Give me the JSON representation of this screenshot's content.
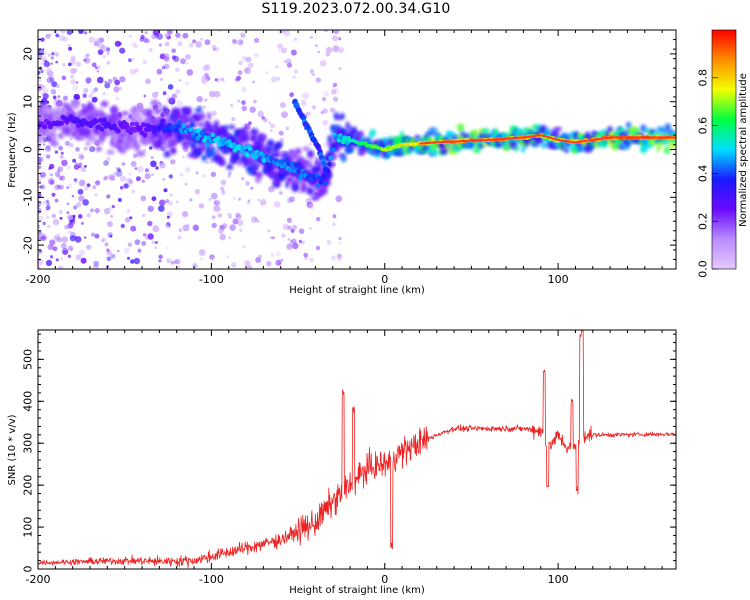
{
  "title": "S119.2023.072.00.34.G10",
  "colors": {
    "snr_line": "#ee2222",
    "ridge": "#ff2a2a",
    "colormap": [
      "#e6c8ff",
      "#b98cff",
      "#6a0aff",
      "#1a1aff",
      "#00e0ff",
      "#00ff40",
      "#f2ff00",
      "#ff8c00",
      "#ff0000"
    ]
  },
  "chart_data": [
    {
      "type": "heatmap",
      "title": "",
      "xlabel": "Height of straight line (km)",
      "ylabel": "Frequency (Hz)",
      "xlim": [
        -200,
        168
      ],
      "ylim": [
        -25,
        25
      ],
      "xticks": [
        -200,
        -100,
        0,
        100
      ],
      "yticks": [
        -20,
        -10,
        0,
        10,
        20
      ],
      "grid": false,
      "colorbar": {
        "label": "Normalized spectral amplitude",
        "range": [
          0,
          1
        ],
        "ticks": [
          0.0,
          0.2,
          0.4,
          0.6,
          0.8
        ],
        "tick_labels": [
          "0.0",
          "0.2",
          "0.4",
          "0.6",
          "0.8"
        ]
      },
      "ridge": {
        "x": [
          -200,
          -180,
          -160,
          -140,
          -120,
          -100,
          -80,
          -60,
          -45,
          -35,
          -28,
          -20,
          -10,
          0,
          10,
          30,
          60,
          80,
          90,
          100,
          110,
          130,
          168
        ],
        "y": [
          5,
          6,
          5,
          4,
          5,
          2,
          0,
          -3,
          -5,
          -7,
          3,
          2,
          1,
          0,
          1,
          1.5,
          2,
          2.5,
          3,
          2,
          1.5,
          2.5,
          2.5
        ],
        "amplitude": [
          0.25,
          0.3,
          0.3,
          0.25,
          0.45,
          0.5,
          0.5,
          0.45,
          0.45,
          0.4,
          0.5,
          0.55,
          0.65,
          0.7,
          0.8,
          0.85,
          0.9,
          0.85,
          0.75,
          0.8,
          0.85,
          0.9,
          0.9
        ]
      },
      "branch": {
        "x": [
          -52,
          -45,
          -38,
          -33
        ],
        "y": [
          10,
          5,
          0,
          -5
        ]
      }
    },
    {
      "type": "line",
      "title": "",
      "xlabel": "Height of straight line (km)",
      "ylabel": "SNR (10 * v/v)",
      "xlim": [
        -200,
        168
      ],
      "ylim": [
        0,
        570
      ],
      "xticks": [
        -200,
        -100,
        0,
        100
      ],
      "yticks": [
        0,
        100,
        200,
        300,
        400,
        500
      ],
      "grid": false,
      "series": [
        {
          "x": [
            -200,
            -170,
            -150,
            -130,
            -110,
            -100,
            -80,
            -60,
            -40,
            -30,
            -20,
            -10,
            0,
            10,
            20,
            30,
            40,
            60,
            80,
            90,
            95,
            100,
            105,
            110,
            115,
            130,
            168
          ],
          "values": [
            15,
            18,
            20,
            18,
            20,
            30,
            50,
            70,
            110,
            160,
            200,
            240,
            250,
            280,
            300,
            320,
            335,
            335,
            335,
            330,
            290,
            320,
            290,
            290,
            320,
            320,
            322
          ],
          "spikes": [
            {
              "x": -24,
              "value": 420
            },
            {
              "x": -18,
              "value": 380
            },
            {
              "x": 4,
              "value": 55
            },
            {
              "x": 92,
              "value": 470
            },
            {
              "x": 94,
              "value": 200
            },
            {
              "x": 108,
              "value": 400
            },
            {
              "x": 111,
              "value": 190
            },
            {
              "x": 113,
              "value": 550
            },
            {
              "x": 114,
              "value": 570
            }
          ]
        }
      ]
    }
  ]
}
